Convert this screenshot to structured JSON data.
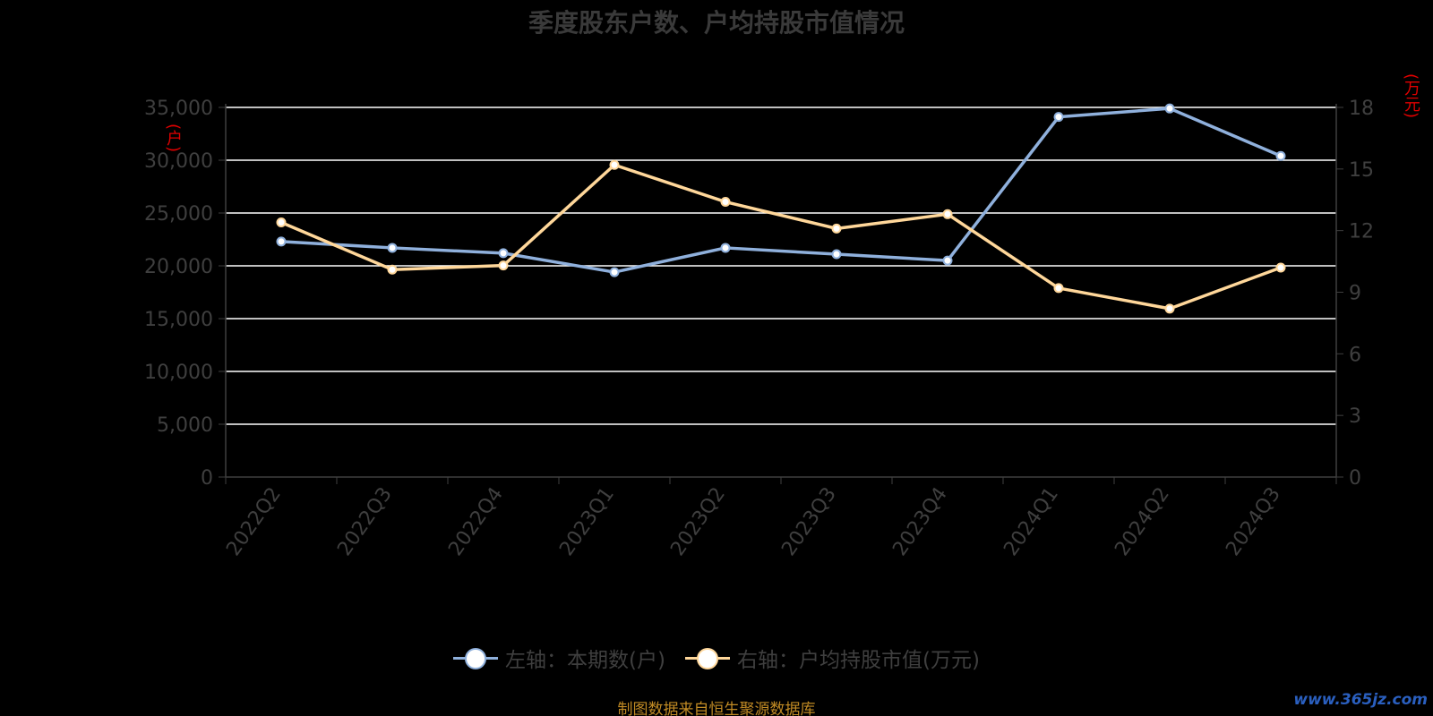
{
  "header": {
    "title": "季度股东户数、户均持股市值情况"
  },
  "units": {
    "left": "(户)",
    "right": "(万元)"
  },
  "colors": {
    "series_left": "#8fb0dc",
    "series_right": "#ffd79a",
    "grid": "#ffffff",
    "axis_text": "#3f3f3f"
  },
  "legend": {
    "left_label": "左轴：本期数(户)",
    "right_label": "右轴：户均持股市值(万元)"
  },
  "footer": {
    "source": "制图数据来自恒生聚源数据库",
    "watermark": "www.365jz.com"
  },
  "chart_data": {
    "type": "line",
    "categories": [
      "2022Q2",
      "2022Q3",
      "2022Q4",
      "2023Q1",
      "2023Q2",
      "2023Q3",
      "2023Q4",
      "2024Q1",
      "2024Q2",
      "2024Q3"
    ],
    "series": [
      {
        "name": "左轴：本期数(户)",
        "axis": "left",
        "values": [
          22300,
          21700,
          21200,
          19400,
          21700,
          21100,
          20500,
          34100,
          34900,
          30400
        ]
      },
      {
        "name": "右轴：户均持股市值(万元)",
        "axis": "right",
        "values": [
          12.4,
          10.1,
          10.3,
          15.2,
          13.4,
          12.1,
          12.8,
          9.2,
          8.2,
          10.2
        ]
      }
    ],
    "left_axis": {
      "min": 0,
      "max": 35000,
      "ticks": [
        0,
        5000,
        10000,
        15000,
        20000,
        25000,
        30000,
        35000
      ],
      "tick_labels": [
        "0",
        "5,000",
        "10,000",
        "15,000",
        "20,000",
        "25,000",
        "30,000",
        "35,000"
      ]
    },
    "right_axis": {
      "min": 0,
      "max": 18,
      "ticks": [
        0,
        3,
        6,
        9,
        12,
        15,
        18
      ],
      "tick_labels": [
        "0",
        "3",
        "6",
        "9",
        "12",
        "15",
        "18"
      ]
    },
    "grid": true,
    "legend_position": "bottom-center"
  }
}
